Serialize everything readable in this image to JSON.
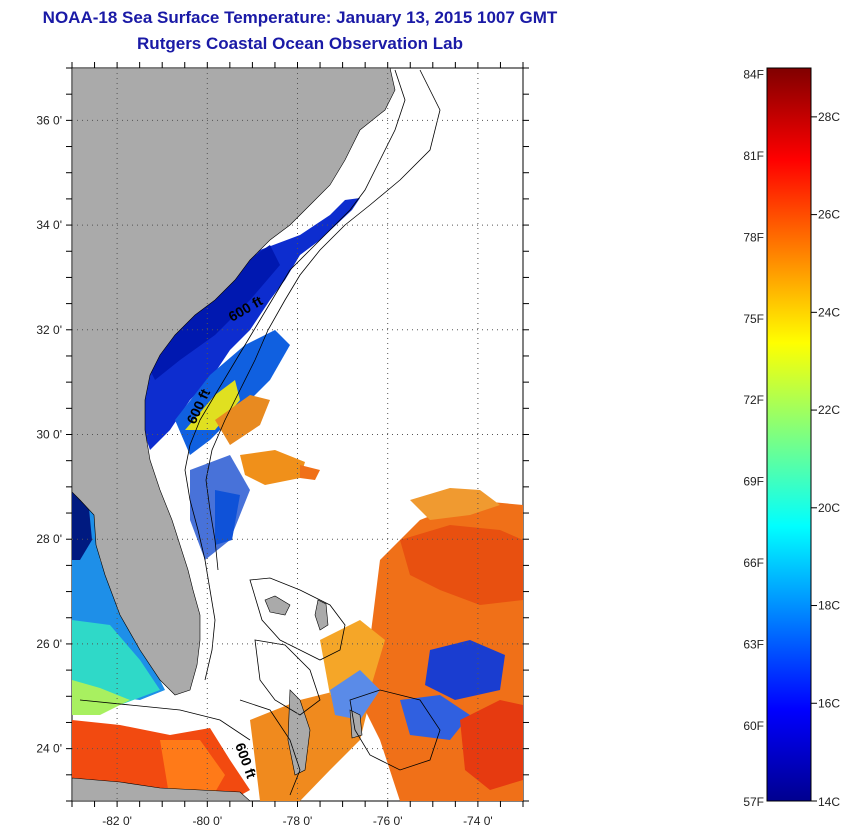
{
  "title_line1": "NOAA-18 Sea Surface Temperature:  January 13, 2015 1007 GMT",
  "title_line2": "Rutgers Coastal Ocean Observation Lab",
  "map": {
    "lon_range": [
      -83,
      -73
    ],
    "lat_range": [
      23,
      37
    ],
    "lon_ticks": [
      "-82 0'",
      "-80 0'",
      "-78 0'",
      "-76 0'",
      "-74 0'"
    ],
    "lat_ticks": [
      "36 0'",
      "34 0'",
      "32 0'",
      "30 0'",
      "28 0'",
      "26 0'",
      "24 0'"
    ],
    "contour_labels": [
      "600 ft",
      "600 ft",
      "600 ft"
    ],
    "colors": {
      "land": "#aaaaaa",
      "ocean_nodata": "#ffffff",
      "grid": "#555555"
    }
  },
  "colorbar": {
    "fahrenheit_labels": [
      "84F",
      "81F",
      "78F",
      "75F",
      "72F",
      "69F",
      "66F",
      "63F",
      "60F",
      "57F"
    ],
    "celsius_labels": [
      "28C",
      "26C",
      "24C",
      "22C",
      "20C",
      "18C",
      "16C",
      "14C"
    ],
    "range_c": [
      14,
      29
    ]
  }
}
